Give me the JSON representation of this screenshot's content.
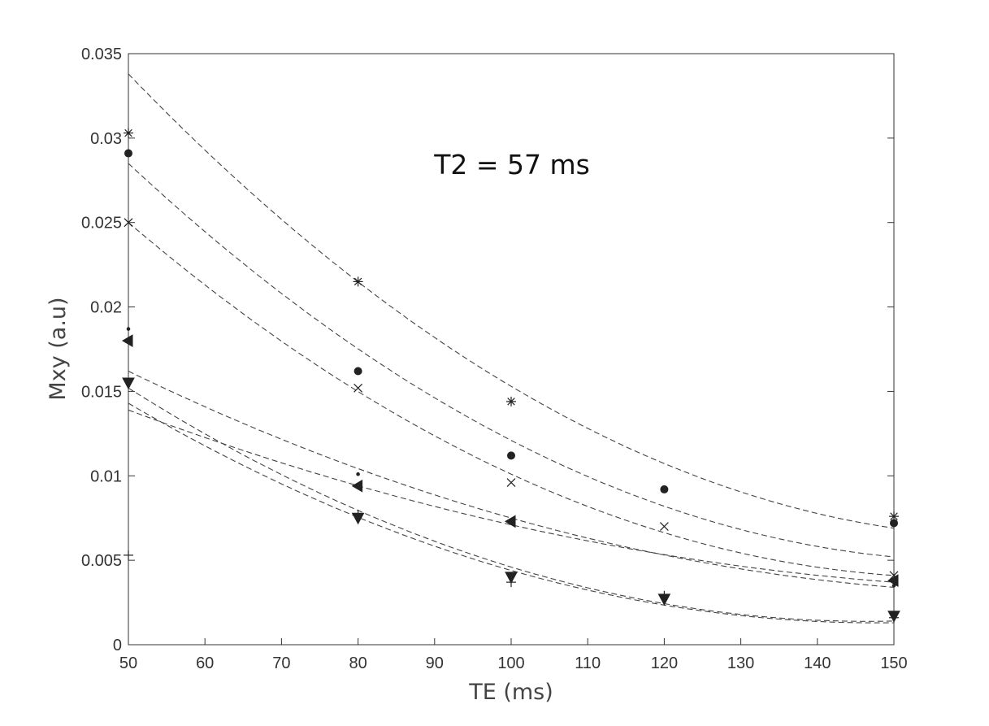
{
  "chart_data": {
    "type": "scatter",
    "xlabel": "TE (ms)",
    "ylabel": "Mxy (a.u)",
    "annotation": "T2 = 57 ms",
    "xlim": [
      50,
      150
    ],
    "ylim": [
      0,
      0.035
    ],
    "x_ticks": [
      "50",
      "60",
      "70",
      "80",
      "90",
      "100",
      "110",
      "120",
      "130",
      "140",
      "150"
    ],
    "y_ticks": [
      "0",
      "0.005",
      "0.01",
      "0.015",
      "0.02",
      "0.025",
      "0.03",
      "0.035"
    ],
    "grid": false,
    "series": [
      {
        "marker": "asterisk",
        "points": [
          [
            50,
            0.0303
          ],
          [
            80,
            0.0215
          ],
          [
            100,
            0.0144
          ],
          [
            150,
            0.0076
          ]
        ],
        "fit_points": [
          [
            50,
            0.0338
          ],
          [
            100,
            0.0153
          ],
          [
            150,
            0.0069
          ]
        ]
      },
      {
        "marker": "circle",
        "points": [
          [
            50,
            0.0291
          ],
          [
            80,
            0.0162
          ],
          [
            100,
            0.0112
          ],
          [
            120,
            0.0092
          ],
          [
            150,
            0.0072
          ]
        ],
        "fit_points": [
          [
            50,
            0.0285
          ],
          [
            100,
            0.0121
          ],
          [
            150,
            0.0052
          ]
        ]
      },
      {
        "marker": "x",
        "points": [
          [
            50,
            0.025
          ],
          [
            80,
            0.0152
          ],
          [
            100,
            0.0096
          ],
          [
            120,
            0.007
          ],
          [
            150,
            0.0041
          ]
        ],
        "fit_points": [
          [
            50,
            0.025
          ],
          [
            100,
            0.0101
          ],
          [
            150,
            0.0041
          ]
        ]
      },
      {
        "marker": "dot",
        "points": [
          [
            50,
            0.0187
          ],
          [
            80,
            0.0101
          ],
          [
            100,
            0.0072
          ],
          [
            150,
            0.0035
          ]
        ],
        "fit_points": [
          [
            50,
            0.0162
          ],
          [
            100,
            0.0075
          ],
          [
            150,
            0.0034
          ]
        ]
      },
      {
        "marker": "triangle-left",
        "points": [
          [
            50,
            0.018
          ],
          [
            80,
            0.0094
          ],
          [
            100,
            0.0073
          ],
          [
            150,
            0.0038
          ]
        ],
        "fit_points": [
          [
            50,
            0.0139
          ],
          [
            100,
            0.0071
          ],
          [
            150,
            0.0037
          ]
        ]
      },
      {
        "marker": "triangle-down",
        "points": [
          [
            50,
            0.0155
          ],
          [
            80,
            0.0075
          ],
          [
            100,
            0.004
          ],
          [
            120,
            0.0027
          ],
          [
            150,
            0.0017
          ]
        ],
        "fit_points": [
          [
            50,
            0.0152
          ],
          [
            100,
            0.0046
          ],
          [
            150,
            0.0014
          ]
        ]
      },
      {
        "marker": "plus",
        "points": [
          [
            50,
            0.0053
          ],
          [
            80,
            0.0077
          ],
          [
            100,
            0.0037
          ],
          [
            120,
            0.0029
          ],
          [
            150,
            0.0016
          ]
        ],
        "fit_points": [
          [
            50,
            0.0143
          ],
          [
            100,
            0.0044
          ],
          [
            150,
            0.0013
          ]
        ]
      }
    ]
  }
}
